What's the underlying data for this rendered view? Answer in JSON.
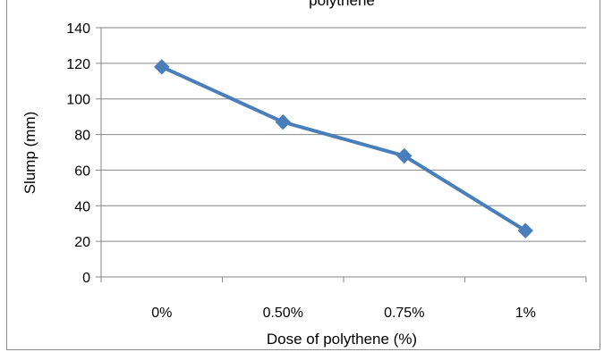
{
  "chart_data": {
    "type": "line",
    "title": "polythene",
    "categories": [
      "0%",
      "0.50%",
      "0.75%",
      "1%"
    ],
    "series": [
      {
        "values": [
          118,
          87,
          68,
          26
        ]
      }
    ],
    "xlabel": "Dose of polythene (%)",
    "ylabel": "Slump (mm)",
    "ylim": [
      0,
      140
    ],
    "yticks": [
      0,
      20,
      40,
      60,
      80,
      100,
      120,
      140
    ],
    "grid": true,
    "legend": "none",
    "colors": {
      "line": "#4a7ebb",
      "grid": "#868686",
      "axis": "#868686"
    }
  }
}
